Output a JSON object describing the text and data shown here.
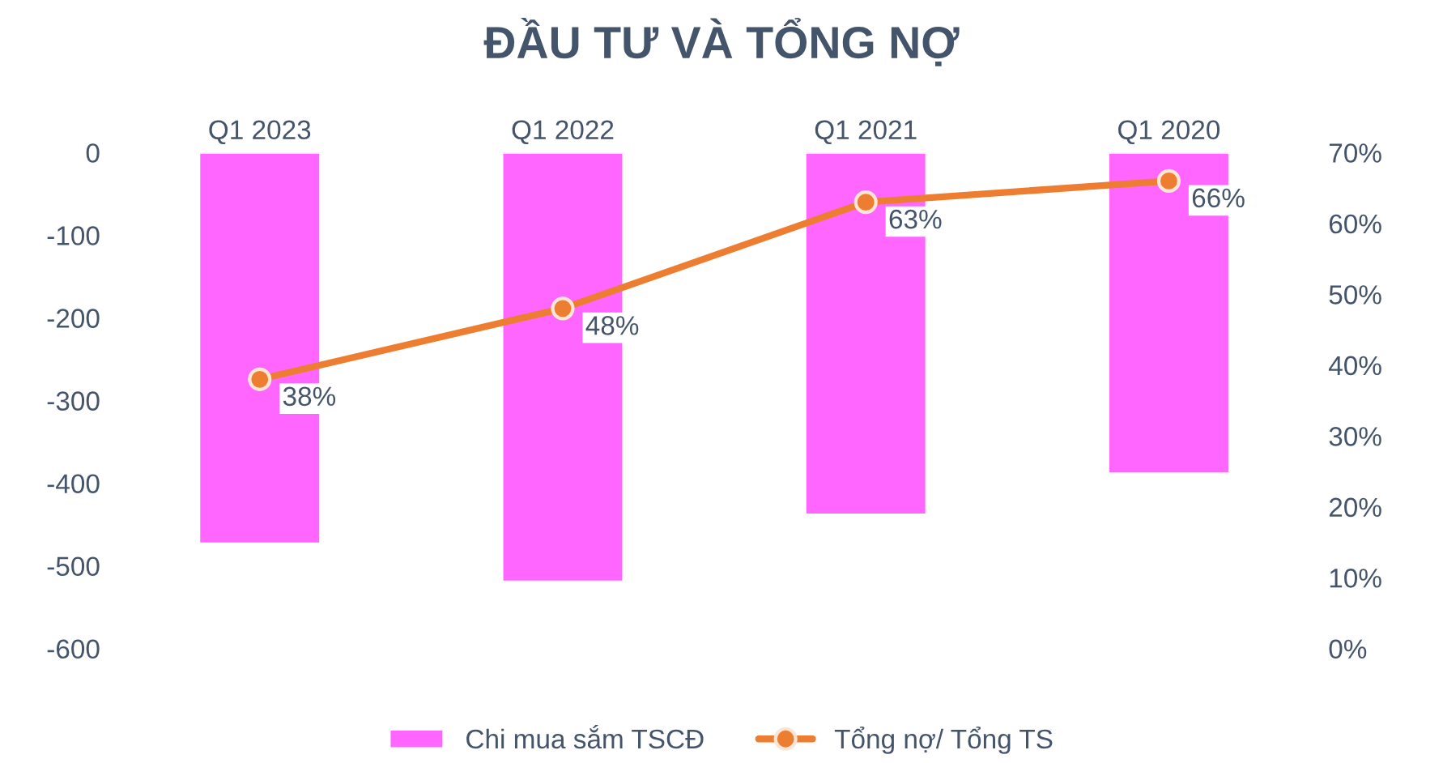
{
  "chart_data": {
    "type": "bar",
    "title": "ĐẦU TƯ VÀ TỔNG NỢ",
    "categories": [
      "Q1 2023",
      "Q1 2022",
      "Q1 2021",
      "Q1 2020"
    ],
    "series": [
      {
        "name": "Chi mua sắm TSCĐ",
        "color": "#ff66ff",
        "values": [
          -473,
          -519,
          -438,
          -388
        ]
      },
      {
        "name": "Tổng nợ/ Tổng TS",
        "type": "line",
        "axis": "y2",
        "color": "#ed7d31",
        "values": [
          38,
          48,
          63,
          66
        ],
        "value_labels": [
          "38%",
          "48%",
          "63%",
          "66%"
        ]
      }
    ],
    "ylim": [
      -600,
      0
    ],
    "yticks": [
      -600,
      -500,
      -400,
      -300,
      -200,
      -100,
      0
    ],
    "y2lim": [
      0,
      70
    ],
    "y2ticks": [
      {
        "value": 0,
        "label": "0%"
      },
      {
        "value": 10,
        "label": "10%"
      },
      {
        "value": 20,
        "label": "20%"
      },
      {
        "value": 30,
        "label": "30%"
      },
      {
        "value": 40,
        "label": "40%"
      },
      {
        "value": 50,
        "label": "50%"
      },
      {
        "value": 60,
        "label": "60%"
      },
      {
        "value": 70,
        "label": "70%"
      }
    ],
    "grid": false,
    "legend": "bottom",
    "marker": "circle"
  }
}
